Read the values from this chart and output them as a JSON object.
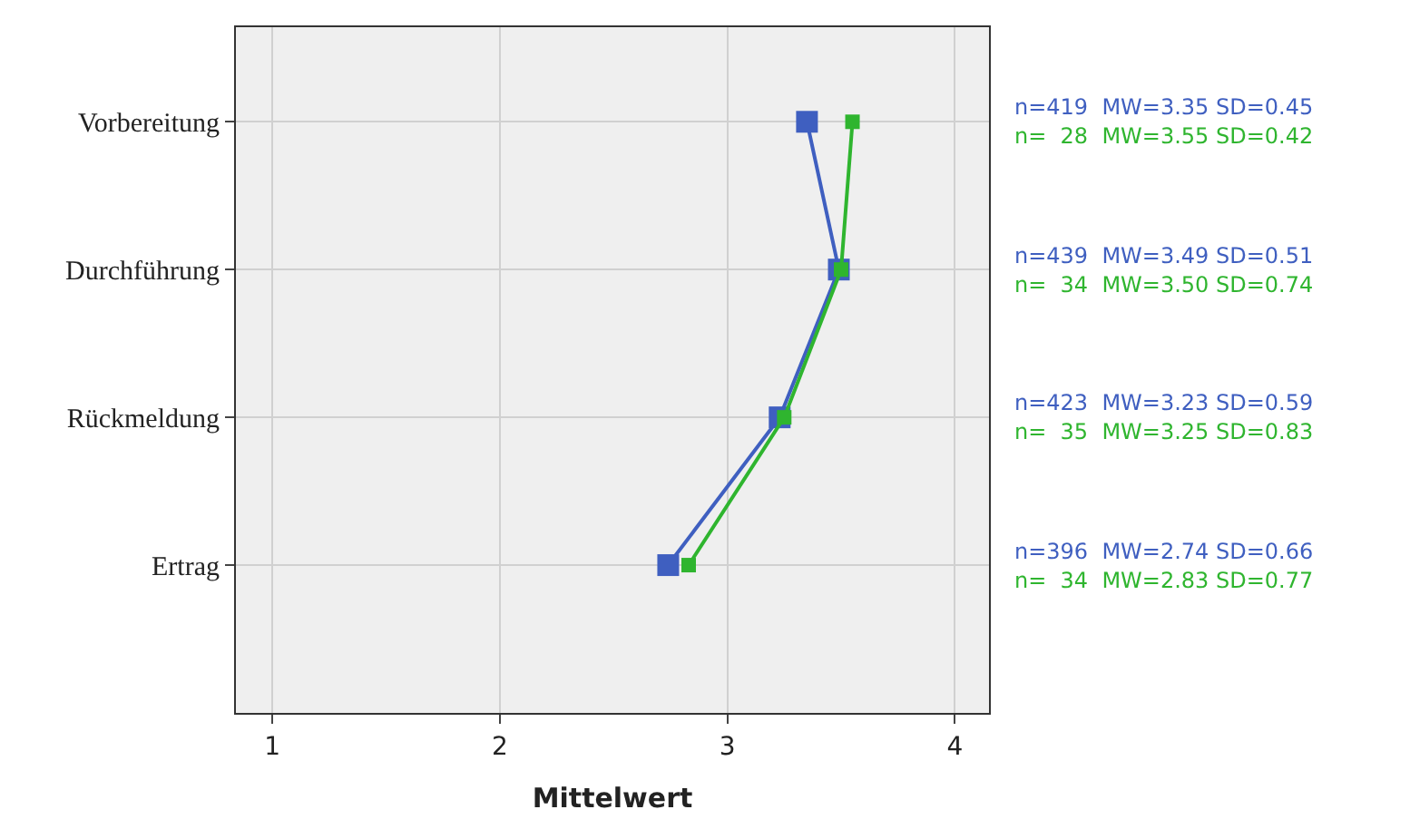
{
  "chart_data": {
    "type": "line",
    "orientation": "horizontal",
    "xlabel": "Mittelwert",
    "categories": [
      "Vorbereitung",
      "Durchführung",
      "Rückmeldung",
      "Ertrag"
    ],
    "series": [
      {
        "color": "#3f5fc0",
        "values": [
          3.35,
          3.49,
          3.23,
          2.74
        ]
      },
      {
        "color": "#2fb52f",
        "values": [
          3.55,
          3.5,
          3.25,
          2.83
        ]
      }
    ],
    "xlim": [
      0.84,
      4.15
    ],
    "xticks": [
      1,
      2,
      3,
      4
    ],
    "grid": true,
    "marker": "square",
    "line_style": "solid",
    "annotations": [
      "n=419  MW=3.35 SD=0.45",
      "n=  28  MW=3.55 SD=0.42",
      "n=439  MW=3.49 SD=0.51",
      "n=  34  MW=3.50 SD=0.74",
      "n=423  MW=3.23 SD=0.59",
      "n=  35  MW=3.25 SD=0.83",
      "n=396  MW=2.74 SD=0.66",
      "n=  34  MW=2.83 SD=0.77"
    ]
  }
}
